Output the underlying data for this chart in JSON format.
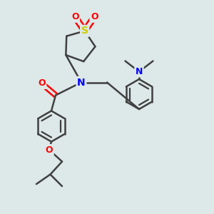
{
  "bg_color": "#dde8e8",
  "bond_color": "#404040",
  "bond_width": 1.8,
  "atom_colors": {
    "S": "#cccc00",
    "O": "#ff0000",
    "N": "#0000ff",
    "C": "#404040"
  },
  "font_size": 9,
  "fig_size": [
    3.0,
    3.0
  ],
  "dpi": 100
}
